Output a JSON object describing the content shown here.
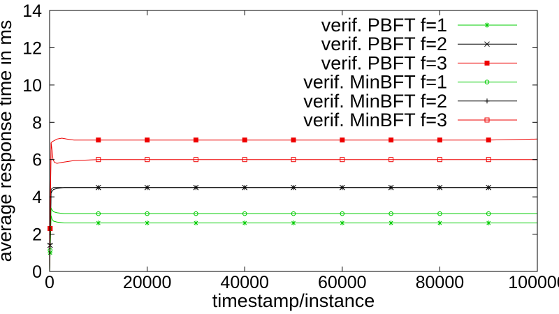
{
  "chart_data": {
    "type": "line",
    "xlabel": "timestamp/instance",
    "ylabel": "average response time in ms",
    "xlim": [
      0,
      100000
    ],
    "ylim": [
      0,
      14
    ],
    "x_ticks": [
      0,
      20000,
      40000,
      60000,
      80000,
      100000
    ],
    "x_tick_labels": [
      "0",
      "20000",
      "40000",
      "60000",
      "80000",
      "100000"
    ],
    "y_ticks": [
      0,
      2,
      4,
      6,
      8,
      10,
      12,
      14
    ],
    "y_tick_labels": [
      "0",
      "2",
      "4",
      "6",
      "8",
      "10",
      "12",
      "14"
    ],
    "grid": false,
    "legend_position": "top-right",
    "series": [
      {
        "name": "verif. PBFT f=1",
        "color": "#00cc00",
        "marker": "star",
        "x": [
          0,
          300,
          500,
          800,
          1500,
          3000,
          5000,
          10000,
          20000,
          30000,
          40000,
          50000,
          60000,
          70000,
          80000,
          90000,
          100000
        ],
        "y": [
          0,
          3.0,
          2.8,
          2.7,
          2.65,
          2.6,
          2.6,
          2.6,
          2.6,
          2.6,
          2.6,
          2.6,
          2.6,
          2.6,
          2.6,
          2.6,
          2.6
        ],
        "marker_x": [
          100,
          10000,
          20000,
          30000,
          40000,
          50000,
          60000,
          70000,
          80000,
          90000
        ]
      },
      {
        "name": "verif. PBFT f=2",
        "color": "#000000",
        "marker": "x",
        "x": [
          0,
          300,
          500,
          800,
          1500,
          3000,
          5000,
          10000,
          20000,
          30000,
          40000,
          50000,
          60000,
          70000,
          80000,
          90000,
          100000
        ],
        "y": [
          0,
          4.2,
          4.3,
          4.4,
          4.45,
          4.5,
          4.5,
          4.5,
          4.5,
          4.5,
          4.5,
          4.5,
          4.5,
          4.5,
          4.5,
          4.5,
          4.5
        ],
        "marker_x": [
          100,
          10000,
          20000,
          30000,
          40000,
          50000,
          60000,
          70000,
          80000,
          90000
        ]
      },
      {
        "name": "verif. PBFT f=3",
        "color": "#ee0000",
        "marker": "filled-square",
        "x": [
          0,
          300,
          500,
          800,
          1500,
          2500,
          3500,
          5000,
          10000,
          20000,
          30000,
          40000,
          50000,
          60000,
          70000,
          80000,
          90000,
          100000
        ],
        "y": [
          0,
          6.9,
          6.95,
          7.0,
          7.1,
          7.15,
          7.1,
          7.05,
          7.05,
          7.05,
          7.05,
          7.05,
          7.05,
          7.05,
          7.05,
          7.05,
          7.05,
          7.1
        ],
        "marker_x": [
          100,
          10000,
          20000,
          30000,
          40000,
          50000,
          60000,
          70000,
          80000,
          90000
        ]
      },
      {
        "name": "verif. MinBFT f=1",
        "color": "#00cc00",
        "marker": "open-circle",
        "x": [
          0,
          300,
          500,
          800,
          1500,
          3000,
          5000,
          10000,
          20000,
          30000,
          40000,
          50000,
          60000,
          70000,
          80000,
          90000,
          100000
        ],
        "y": [
          0,
          3.4,
          3.3,
          3.2,
          3.15,
          3.1,
          3.1,
          3.1,
          3.1,
          3.1,
          3.1,
          3.1,
          3.1,
          3.1,
          3.1,
          3.1,
          3.1
        ],
        "marker_x": [
          100,
          10000,
          20000,
          30000,
          40000,
          50000,
          60000,
          70000,
          80000,
          90000
        ]
      },
      {
        "name": "verif. MinBFT f=2",
        "color": "#000000",
        "marker": "plus",
        "x": [
          0,
          300,
          500,
          800,
          1500,
          3000,
          5000,
          10000,
          20000,
          30000,
          40000,
          50000,
          60000,
          70000,
          80000,
          90000,
          100000
        ],
        "y": [
          0,
          4.4,
          4.45,
          4.5,
          4.5,
          4.5,
          4.5,
          4.5,
          4.5,
          4.5,
          4.5,
          4.5,
          4.5,
          4.5,
          4.5,
          4.5,
          4.5
        ],
        "marker_x": [
          100,
          10000,
          20000,
          30000,
          40000,
          50000,
          60000,
          70000,
          80000,
          90000
        ]
      },
      {
        "name": "verif. MinBFT f=3",
        "color": "#ee0000",
        "marker": "open-square",
        "x": [
          0,
          300,
          500,
          700,
          1000,
          1500,
          2500,
          5000,
          10000,
          20000,
          30000,
          40000,
          50000,
          60000,
          70000,
          80000,
          90000,
          100000
        ],
        "y": [
          0,
          6.9,
          6.5,
          6.0,
          5.85,
          5.8,
          5.85,
          5.95,
          6.0,
          6.0,
          6.0,
          6.0,
          6.0,
          6.0,
          6.0,
          6.0,
          6.0,
          6.0
        ],
        "marker_x": [
          100,
          10000,
          20000,
          30000,
          40000,
          50000,
          60000,
          70000,
          80000,
          90000
        ]
      }
    ]
  }
}
